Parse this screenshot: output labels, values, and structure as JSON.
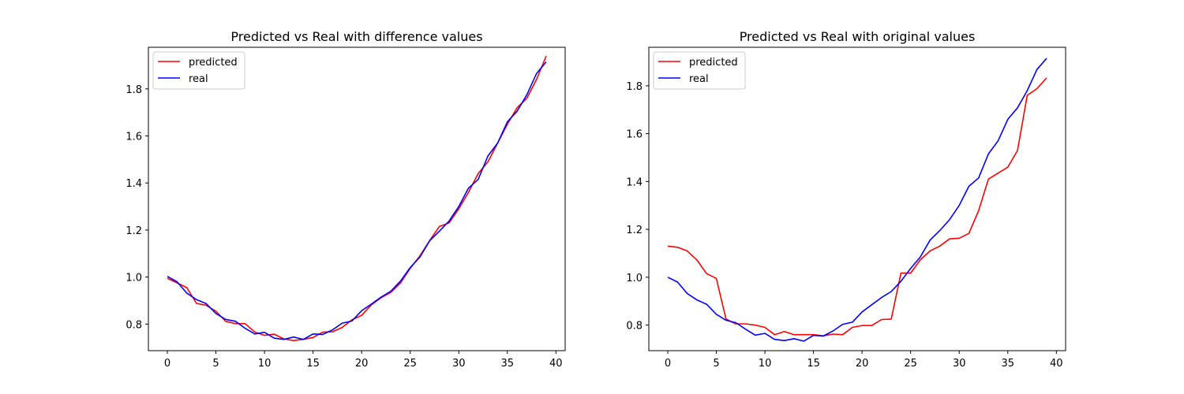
{
  "chart_data": [
    {
      "type": "line",
      "title": "Predicted vs Real with difference values",
      "xlabel": "",
      "ylabel": "",
      "xlim": [
        -1.95,
        40.95
      ],
      "ylim": [
        0.687,
        1.977
      ],
      "xticks": [
        0,
        5,
        10,
        15,
        20,
        25,
        30,
        35,
        40
      ],
      "yticks": [
        0.8,
        1.0,
        1.2,
        1.4,
        1.6,
        1.8
      ],
      "grid": false,
      "legend": "top-left",
      "x": [
        0,
        1,
        2,
        3,
        4,
        5,
        6,
        7,
        8,
        9,
        10,
        11,
        12,
        13,
        14,
        15,
        16,
        17,
        18,
        19,
        20,
        21,
        22,
        23,
        24,
        25,
        26,
        27,
        28,
        29,
        30,
        31,
        32,
        33,
        34,
        35,
        36,
        37,
        38,
        39
      ],
      "series": [
        {
          "name": "predicted",
          "color": "#ff0000",
          "values": [
            0.995,
            0.975,
            0.955,
            0.888,
            0.88,
            0.855,
            0.812,
            0.802,
            0.802,
            0.766,
            0.752,
            0.757,
            0.737,
            0.73,
            0.735,
            0.743,
            0.766,
            0.767,
            0.786,
            0.818,
            0.837,
            0.882,
            0.912,
            0.935,
            0.975,
            1.037,
            1.09,
            1.155,
            1.215,
            1.23,
            1.29,
            1.36,
            1.44,
            1.49,
            1.57,
            1.65,
            1.72,
            1.76,
            1.84,
            1.94
          ]
        },
        {
          "name": "real",
          "color": "#0000ff",
          "values": [
            1.003,
            0.98,
            0.932,
            0.904,
            0.887,
            0.845,
            0.82,
            0.812,
            0.782,
            0.758,
            0.765,
            0.74,
            0.735,
            0.745,
            0.735,
            0.758,
            0.756,
            0.775,
            0.804,
            0.813,
            0.857,
            0.885,
            0.915,
            0.94,
            0.983,
            1.04,
            1.085,
            1.154,
            1.195,
            1.238,
            1.3,
            1.378,
            1.415,
            1.515,
            1.57,
            1.66,
            1.705,
            1.775,
            1.865,
            1.915
          ]
        }
      ]
    },
    {
      "type": "line",
      "title": "Predicted vs Real with original values",
      "xlabel": "",
      "ylabel": "",
      "xlim": [
        -1.95,
        40.95
      ],
      "ylim": [
        0.693,
        1.961
      ],
      "xticks": [
        0,
        5,
        10,
        15,
        20,
        25,
        30,
        35,
        40
      ],
      "yticks": [
        0.8,
        1.0,
        1.2,
        1.4,
        1.6,
        1.8
      ],
      "grid": false,
      "legend": "top-left",
      "x": [
        0,
        1,
        2,
        3,
        4,
        5,
        6,
        7,
        8,
        9,
        10,
        11,
        12,
        13,
        14,
        15,
        16,
        17,
        18,
        19,
        20,
        21,
        22,
        23,
        24,
        25,
        26,
        27,
        28,
        29,
        30,
        31,
        32,
        33,
        34,
        35,
        36,
        37,
        38,
        39
      ],
      "series": [
        {
          "name": "predicted",
          "color": "#ff0000",
          "values": [
            1.13,
            1.125,
            1.11,
            1.072,
            1.015,
            0.995,
            0.825,
            0.805,
            0.805,
            0.8,
            0.79,
            0.76,
            0.773,
            0.76,
            0.76,
            0.76,
            0.755,
            0.762,
            0.76,
            0.79,
            0.798,
            0.798,
            0.823,
            0.825,
            1.017,
            1.017,
            1.073,
            1.11,
            1.13,
            1.16,
            1.163,
            1.183,
            1.278,
            1.41,
            1.435,
            1.46,
            1.53,
            1.76,
            1.788,
            1.833
          ]
        },
        {
          "name": "real",
          "color": "#0000ff",
          "values": [
            1.0,
            0.98,
            0.932,
            0.905,
            0.887,
            0.845,
            0.82,
            0.81,
            0.783,
            0.758,
            0.765,
            0.74,
            0.735,
            0.743,
            0.733,
            0.757,
            0.754,
            0.775,
            0.803,
            0.812,
            0.855,
            0.885,
            0.915,
            0.94,
            0.983,
            1.037,
            1.085,
            1.155,
            1.195,
            1.24,
            1.3,
            1.38,
            1.415,
            1.515,
            1.57,
            1.66,
            1.708,
            1.78,
            1.868,
            1.915
          ]
        }
      ]
    }
  ]
}
